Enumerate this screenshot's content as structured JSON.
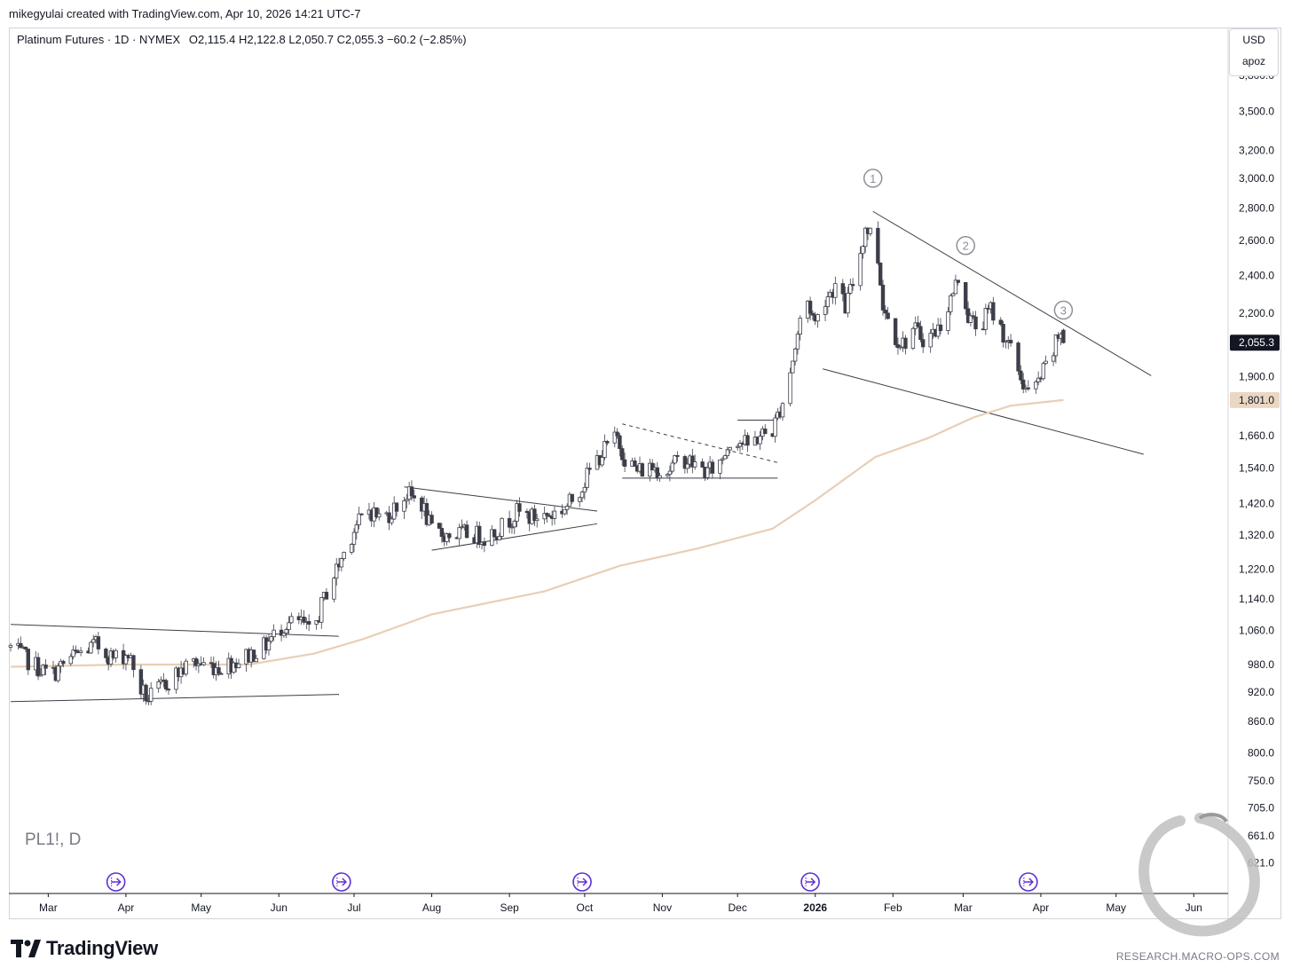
{
  "caption": "mikegyulai created with TradingView.com, Apr 10, 2026 14:21 UTC-7",
  "header": {
    "title": "Platinum Futures · 1D · NYMEX",
    "ohlc": "O2,115.4  H2,122.8  L2,050.7  C2,055.3  −60.2 (−2.85%)"
  },
  "currency_box": {
    "currency": "USD",
    "scale_mode": "apoz"
  },
  "symbol_watermark": "PL1!, D",
  "brand": "TradingView",
  "site": "RESEARCH.MACRO-OPS.COM",
  "colors": {
    "up": "#ffffff",
    "down": "#3c3e49",
    "outline": "#3c3e49",
    "ma": "#e8cfb5",
    "event": "#5b2fd6",
    "label_bg": "#131722",
    "ma_label_bg": "#ead7c3"
  },
  "chart_data": {
    "type": "candlestick",
    "scale": "log",
    "y_range": [
      580,
      4000
    ],
    "y_ticks": [
      "3,800.0",
      "3,500.0",
      "3,200.0",
      "3,000.0",
      "2,800.0",
      "2,600.0",
      "2,400.0",
      "2,200.0",
      "1,900.0",
      "1,660.0",
      "1,540.0",
      "1,420.0",
      "1,320.0",
      "1,220.0",
      "1,140.0",
      "1,060.0",
      "980.0",
      "920.0",
      "860.0",
      "800.0",
      "750.0",
      "705.0",
      "661.0",
      "621.0"
    ],
    "x_ticks": [
      {
        "label": "Mar",
        "date": "2025-03-01"
      },
      {
        "label": "Apr",
        "date": "2025-04-01"
      },
      {
        "label": "May",
        "date": "2025-05-01"
      },
      {
        "label": "Jun",
        "date": "2025-06-01"
      },
      {
        "label": "Jul",
        "date": "2025-07-01"
      },
      {
        "label": "Aug",
        "date": "2025-08-01"
      },
      {
        "label": "Sep",
        "date": "2025-09-01"
      },
      {
        "label": "Oct",
        "date": "2025-10-01"
      },
      {
        "label": "Nov",
        "date": "2025-11-01"
      },
      {
        "label": "Dec",
        "date": "2025-12-01"
      },
      {
        "label": "2026",
        "date": "2026-01-01",
        "bold": true
      },
      {
        "label": "Feb",
        "date": "2026-02-01"
      },
      {
        "label": "Mar",
        "date": "2026-03-01"
      },
      {
        "label": "Apr",
        "date": "2026-04-01"
      },
      {
        "label": "May",
        "date": "2026-05-01"
      },
      {
        "label": "Jun",
        "date": "2026-06-01"
      }
    ],
    "x_range": [
      "2025-02-14",
      "2026-06-14"
    ],
    "last_price": {
      "value": 2055.3,
      "label": "2,055.3"
    },
    "ma_price": {
      "value": 1801.0,
      "label": "1,801.0"
    },
    "price_path": [
      [
        "2025-02-14",
        1020
      ],
      [
        "2025-02-22",
        985
      ],
      [
        "2025-03-02",
        955
      ],
      [
        "2025-03-10",
        995
      ],
      [
        "2025-03-20",
        1025
      ],
      [
        "2025-03-27",
        995
      ],
      [
        "2025-04-02",
        1005
      ],
      [
        "2025-04-07",
        925
      ],
      [
        "2025-04-10",
        905
      ],
      [
        "2025-04-20",
        955
      ],
      [
        "2025-04-28",
        985
      ],
      [
        "2025-05-08",
        975
      ],
      [
        "2025-05-16",
        990
      ],
      [
        "2025-05-26",
        1020
      ],
      [
        "2025-06-03",
        1075
      ],
      [
        "2025-06-10",
        1080
      ],
      [
        "2025-06-14",
        1045
      ],
      [
        "2025-06-20",
        1160
      ],
      [
        "2025-06-26",
        1250
      ],
      [
        "2025-07-01",
        1340
      ],
      [
        "2025-07-07",
        1400
      ],
      [
        "2025-07-12",
        1370
      ],
      [
        "2025-07-16",
        1395
      ],
      [
        "2025-07-22",
        1450
      ],
      [
        "2025-07-28",
        1420
      ],
      [
        "2025-08-01",
        1330
      ],
      [
        "2025-08-08",
        1320
      ],
      [
        "2025-08-16",
        1325
      ],
      [
        "2025-08-22",
        1315
      ],
      [
        "2025-08-28",
        1340
      ],
      [
        "2025-09-04",
        1390
      ],
      [
        "2025-09-10",
        1375
      ],
      [
        "2025-09-18",
        1385
      ],
      [
        "2025-09-24",
        1410
      ],
      [
        "2025-09-30",
        1480
      ],
      [
        "2025-10-05",
        1560
      ],
      [
        "2025-10-10",
        1620
      ],
      [
        "2025-10-14",
        1650
      ],
      [
        "2025-10-17",
        1580
      ],
      [
        "2025-10-22",
        1530
      ],
      [
        "2025-10-28",
        1545
      ],
      [
        "2025-11-03",
        1530
      ],
      [
        "2025-11-09",
        1580
      ],
      [
        "2025-11-14",
        1550
      ],
      [
        "2025-11-19",
        1525
      ],
      [
        "2025-11-24",
        1560
      ],
      [
        "2025-11-29",
        1660
      ],
      [
        "2025-12-05",
        1620
      ],
      [
        "2025-12-10",
        1660
      ],
      [
        "2025-12-15",
        1680
      ],
      [
        "2025-12-20",
        1830
      ],
      [
        "2025-12-24",
        2030
      ],
      [
        "2025-12-28",
        2300
      ],
      [
        "2026-01-01",
        2150
      ],
      [
        "2026-01-05",
        2280
      ],
      [
        "2026-01-09",
        2340
      ],
      [
        "2026-01-13",
        2230
      ],
      [
        "2026-01-17",
        2400
      ],
      [
        "2026-01-21",
        2680
      ],
      [
        "2026-01-25",
        2620
      ],
      [
        "2026-01-28",
        2250
      ],
      [
        "2026-02-01",
        2100
      ],
      [
        "2026-02-05",
        2050
      ],
      [
        "2026-02-09",
        2120
      ],
      [
        "2026-02-14",
        2070
      ],
      [
        "2026-02-19",
        2120
      ],
      [
        "2026-02-24",
        2270
      ],
      [
        "2026-02-28",
        2420
      ],
      [
        "2026-03-03",
        2180
      ],
      [
        "2026-03-07",
        2120
      ],
      [
        "2026-03-12",
        2220
      ],
      [
        "2026-03-17",
        2100
      ],
      [
        "2026-03-21",
        1990
      ],
      [
        "2026-03-25",
        1870
      ],
      [
        "2026-03-28",
        1810
      ],
      [
        "2026-04-01",
        1900
      ],
      [
        "2026-04-05",
        1980
      ],
      [
        "2026-04-09",
        2115
      ],
      [
        "2026-04-10",
        2055.3
      ]
    ],
    "moving_average": [
      [
        "2025-02-14",
        975
      ],
      [
        "2025-04-01",
        980
      ],
      [
        "2025-05-20",
        980
      ],
      [
        "2025-06-15",
        1005
      ],
      [
        "2025-07-05",
        1040
      ],
      [
        "2025-08-01",
        1100
      ],
      [
        "2025-09-15",
        1160
      ],
      [
        "2025-10-15",
        1230
      ],
      [
        "2025-11-15",
        1280
      ],
      [
        "2025-12-15",
        1340
      ],
      [
        "2026-01-01",
        1430
      ],
      [
        "2026-01-25",
        1580
      ],
      [
        "2026-02-15",
        1650
      ],
      [
        "2026-03-05",
        1730
      ],
      [
        "2026-03-20",
        1778
      ],
      [
        "2026-04-10",
        1801
      ]
    ],
    "trendlines": [
      {
        "from": [
          "2025-02-14",
          1075
        ],
        "to": [
          "2025-06-25",
          1046
        ],
        "style": "solid"
      },
      {
        "from": [
          "2025-02-14",
          900
        ],
        "to": [
          "2025-06-25",
          915
        ],
        "style": "solid"
      },
      {
        "from": [
          "2025-07-21",
          1475
        ],
        "to": [
          "2025-10-06",
          1395
        ],
        "style": "solid"
      },
      {
        "from": [
          "2025-08-01",
          1275
        ],
        "to": [
          "2025-10-06",
          1355
        ],
        "style": "solid"
      },
      {
        "from": [
          "2025-10-16",
          1705
        ],
        "to": [
          "2025-12-17",
          1560
        ],
        "style": "dashed"
      },
      {
        "from": [
          "2025-10-16",
          1505
        ],
        "to": [
          "2025-12-17",
          1505
        ],
        "style": "solid"
      },
      {
        "from": [
          "2025-12-01",
          1720
        ],
        "to": [
          "2025-12-17",
          1720
        ],
        "style": "solid"
      },
      {
        "from": [
          "2026-01-24",
          2780
        ],
        "to": [
          "2026-05-15",
          1905
        ],
        "style": "solid"
      },
      {
        "from": [
          "2026-01-04",
          1935
        ],
        "to": [
          "2026-05-12",
          1590
        ],
        "style": "solid"
      }
    ],
    "wave_labels": [
      {
        "label": "1",
        "date": "2026-01-24",
        "price": 3000
      },
      {
        "label": "2",
        "date": "2026-03-02",
        "price": 2570
      },
      {
        "label": "3",
        "date": "2026-04-10",
        "price": 2215
      }
    ],
    "event_dates": [
      "2025-03-28",
      "2025-06-26",
      "2025-09-30",
      "2025-12-30",
      "2026-03-27"
    ]
  }
}
